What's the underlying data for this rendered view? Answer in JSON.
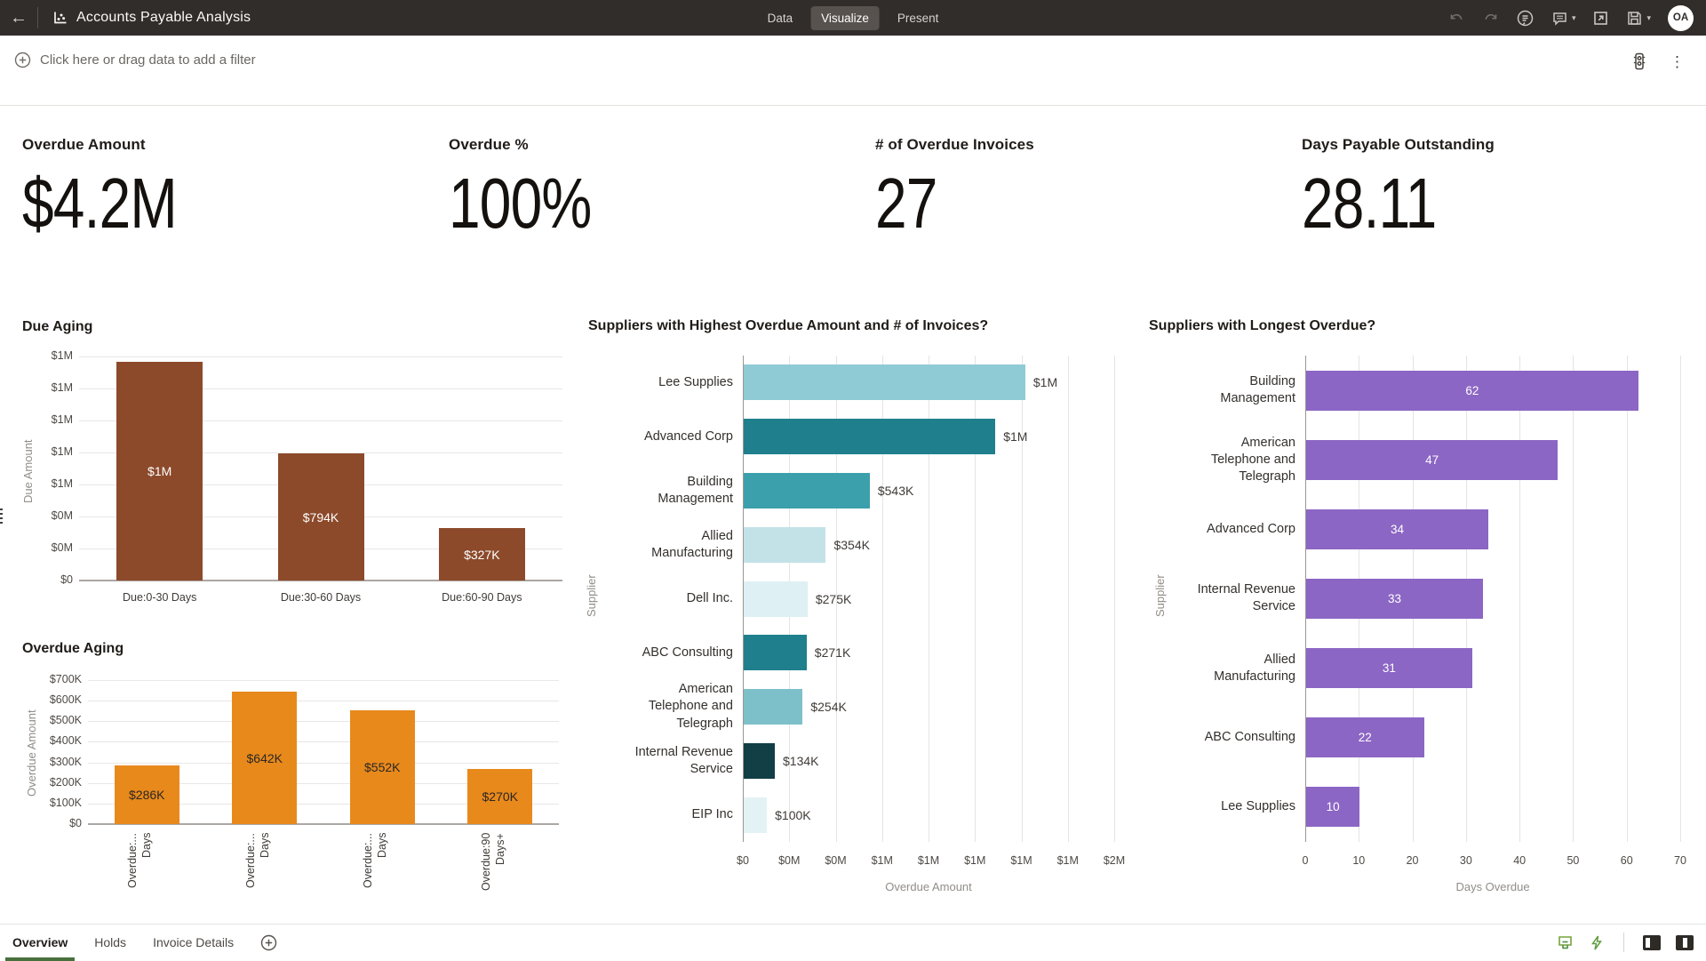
{
  "header": {
    "title": "Accounts Payable Analysis",
    "nav_tabs": [
      {
        "label": "Data",
        "active": false
      },
      {
        "label": "Visualize",
        "active": true
      },
      {
        "label": "Present",
        "active": false
      }
    ],
    "avatar_initials": "OA"
  },
  "filter_bar": {
    "prompt": "Click here or drag data to add a filter"
  },
  "kpis": [
    {
      "label": "Overdue Amount",
      "value": "$4.2M"
    },
    {
      "label": "Overdue %",
      "value": "100%"
    },
    {
      "label": "# of Overdue Invoices",
      "value": "27"
    },
    {
      "label": "Days Payable Outstanding",
      "value": "28.11"
    }
  ],
  "chart_data": [
    {
      "id": "due_aging",
      "type": "bar",
      "title": "Due Aging",
      "xlabel": "",
      "ylabel": "Due Amount",
      "categories": [
        "Due:0-30 Days",
        "Due:30-60 Days",
        "Due:60-90 Days"
      ],
      "values": [
        1367000,
        794000,
        327000
      ],
      "value_labels": [
        "$1M",
        "$794K",
        "$327K"
      ],
      "ylim": [
        0,
        1400000
      ],
      "ytick_labels": [
        "$1M",
        "$1M",
        "$1M",
        "$1M",
        "$1M",
        "$0M",
        "$0M",
        "$0"
      ],
      "bar_color": "#8C4A2B",
      "value_label_color": "#FFFFFF",
      "grid": true,
      "legend": "none"
    },
    {
      "id": "overdue_aging",
      "type": "bar",
      "title": "Overdue Aging",
      "xlabel": "",
      "ylabel": "Overdue Amount",
      "categories": [
        "Overdue:...\nDays",
        "Overdue:...\nDays",
        "Overdue:...\nDays",
        "Overdue:90\nDays+"
      ],
      "values": [
        286000,
        642000,
        552000,
        270000
      ],
      "value_labels": [
        "$286K",
        "$642K",
        "$552K",
        "$270K"
      ],
      "ylim": [
        0,
        700000
      ],
      "ytick_labels": [
        "$700K",
        "$600K",
        "$500K",
        "$400K",
        "$300K",
        "$200K",
        "$100K",
        "$0"
      ],
      "bar_color": "#E8891C",
      "value_label_color": "#2B2724",
      "grid": true,
      "legend": "none"
    },
    {
      "id": "suppliers_overdue",
      "type": "bar",
      "orientation": "horizontal",
      "title": "Suppliers with Highest Overdue Amount and # of Invoices?",
      "xlabel": "Overdue Amount",
      "ylabel": "Supplier",
      "categories": [
        "Lee Supplies",
        "Advanced Corp",
        "Building Management",
        "Allied Manufacturing",
        "Dell Inc.",
        "ABC Consulting",
        "American Telephone and Telegraph",
        "Internal Revenue Service",
        "EIP Inc"
      ],
      "values": [
        1213000,
        1084000,
        543000,
        354000,
        275000,
        271000,
        254000,
        134000,
        100000
      ],
      "value_labels": [
        "$1M",
        "$1M",
        "$543K",
        "$354K",
        "$275K",
        "$271K",
        "$254K",
        "$134K",
        "$100K"
      ],
      "xlim": [
        0,
        1600000
      ],
      "xtick_labels": [
        "$0",
        "$0M",
        "$0M",
        "$1M",
        "$1M",
        "$1M",
        "$1M",
        "$1M",
        "$2M"
      ],
      "bar_colors": [
        "#8FCBD5",
        "#1F7F8C",
        "#3BA0AB",
        "#C2E2E8",
        "#DEF0F4",
        "#1F7F8C",
        "#7EC0CA",
        "#123E46",
        "#E3F2F5"
      ],
      "value_label_color": "#3F3B37",
      "value_label_position": "outside",
      "grid": true,
      "legend": "none"
    },
    {
      "id": "suppliers_days",
      "type": "bar",
      "orientation": "horizontal",
      "title": "Suppliers with Longest Overdue?",
      "xlabel": "Days Overdue",
      "ylabel": "Supplier",
      "categories": [
        "Building Management",
        "American Telephone and Telegraph",
        "Advanced Corp",
        "Internal Revenue Service",
        "Allied Manufacturing",
        "ABC Consulting",
        "Lee Supplies"
      ],
      "values": [
        62,
        47,
        34,
        33,
        31,
        22,
        10
      ],
      "value_labels": [
        "62",
        "47",
        "34",
        "33",
        "31",
        "22",
        "10"
      ],
      "xlim": [
        0,
        70
      ],
      "xtick_labels": [
        "0",
        "10",
        "20",
        "30",
        "40",
        "50",
        "60",
        "70"
      ],
      "bar_color": "#8C66C4",
      "value_label_color": "#FFFFFF",
      "value_label_position": "inside",
      "grid": true,
      "legend": "none"
    }
  ],
  "footer": {
    "tabs": [
      {
        "label": "Overview",
        "active": true
      },
      {
        "label": "Holds",
        "active": false
      },
      {
        "label": "Invoice Details",
        "active": false
      }
    ]
  },
  "colors": {
    "header_bg": "#312D2A",
    "due_bar": "#8C4A2B",
    "overdue_bar": "#E8891C",
    "days_bar": "#8C66C4",
    "active_tab_underline": "#47703C",
    "footer_icon_green": "#76A338"
  }
}
